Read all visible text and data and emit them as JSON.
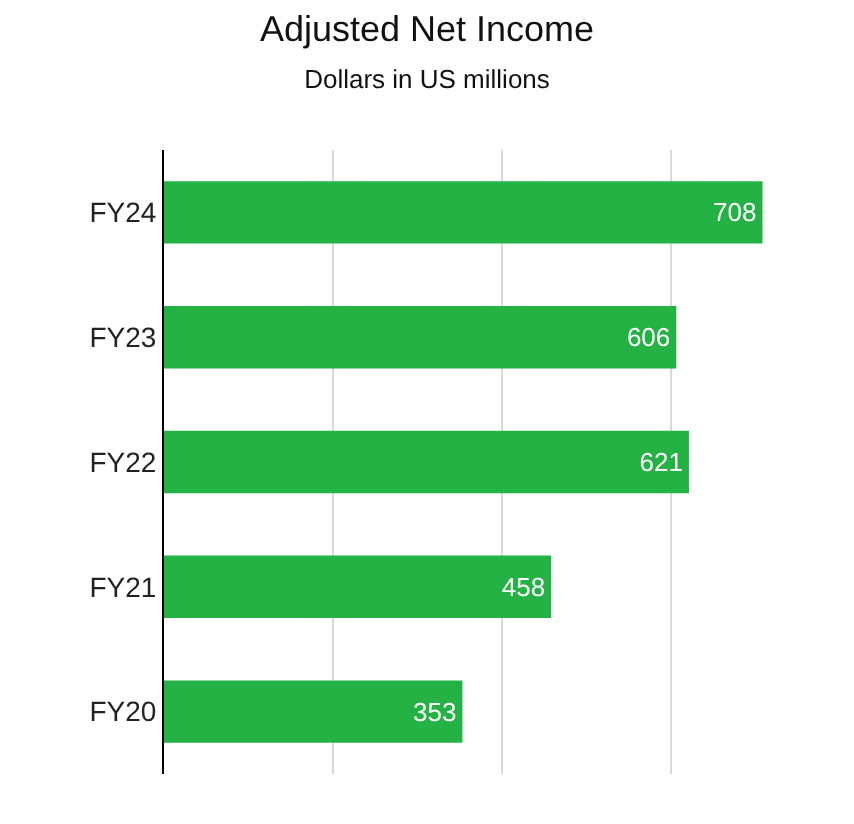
{
  "chart_data": {
    "type": "bar",
    "orientation": "horizontal",
    "title": "Adjusted Net Income",
    "subtitle": "Dollars in US millions",
    "categories": [
      "FY24",
      "FY23",
      "FY22",
      "FY21",
      "FY20"
    ],
    "values": [
      708,
      606,
      621,
      458,
      353
    ],
    "color": "#25b245",
    "xticks": [
      {
        "value": 0,
        "label": null
      },
      {
        "value": 200,
        "label": null
      },
      {
        "value": 400,
        "label": null
      },
      {
        "value": 600,
        "label": null
      }
    ],
    "grid": "x",
    "tick_labels": "y",
    "data_labels": true,
    "legend": false
  }
}
